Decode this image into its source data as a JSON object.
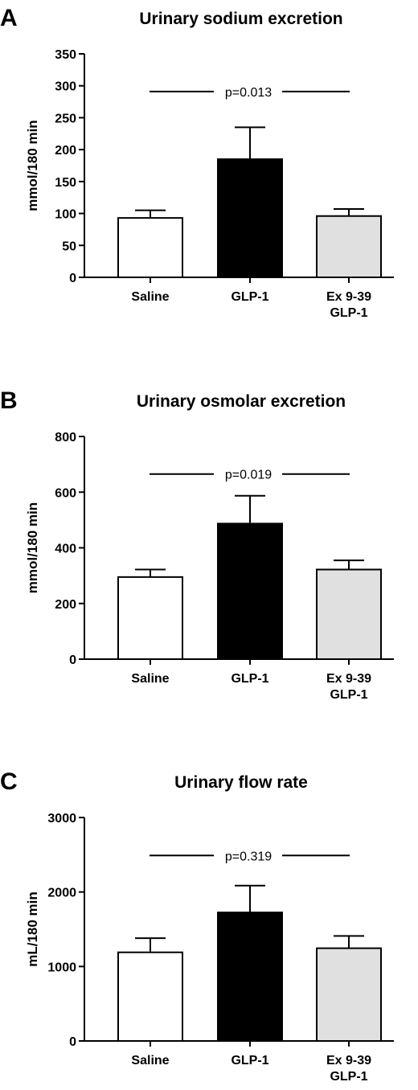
{
  "colors": {
    "saline_fill": "#ffffff",
    "glp1_fill": "#000000",
    "ex_fill": "#e0e0e0",
    "stroke": "#000000"
  },
  "chart_data": [
    {
      "type": "bar",
      "panel": "A",
      "title": "Urinary sodium excretion",
      "ylabel": "mmol/180 min",
      "xlabel": "",
      "categories": [
        [
          "Saline"
        ],
        [
          "GLP-1"
        ],
        [
          "Ex 9-39",
          "GLP-1"
        ]
      ],
      "values": [
        93,
        185,
        96
      ],
      "errors": [
        12,
        50,
        11
      ],
      "ylim": [
        0,
        350
      ],
      "yticks": [
        0,
        50,
        100,
        150,
        200,
        250,
        300,
        350
      ],
      "significance": {
        "label": "p=0.013",
        "y": 291
      },
      "grid": false,
      "legend": "none"
    },
    {
      "type": "bar",
      "panel": "B",
      "title": "Urinary osmolar excretion",
      "ylabel": "mmol/180 min",
      "xlabel": "",
      "categories": [
        [
          "Saline"
        ],
        [
          "GLP-1"
        ],
        [
          "Ex 9-39",
          "GLP-1"
        ]
      ],
      "values": [
        295,
        487,
        322
      ],
      "errors": [
        27,
        100,
        33
      ],
      "ylim": [
        0,
        800
      ],
      "yticks": [
        0,
        200,
        400,
        600,
        800
      ],
      "significance": {
        "label": "p=0.019",
        "y": 665
      },
      "grid": false,
      "legend": "none"
    },
    {
      "type": "bar",
      "panel": "C",
      "title": "Urinary flow rate",
      "ylabel": "mL/180 min",
      "xlabel": "",
      "categories": [
        [
          "Saline"
        ],
        [
          "GLP-1"
        ],
        [
          "Ex 9-39",
          "GLP-1"
        ]
      ],
      "values": [
        1190,
        1725,
        1245
      ],
      "errors": [
        190,
        360,
        165
      ],
      "ylim": [
        0,
        3000
      ],
      "yticks": [
        0,
        1000,
        2000,
        3000
      ],
      "significance": {
        "label": "p=0.319",
        "y": 2490
      },
      "grid": false,
      "legend": "none"
    }
  ]
}
